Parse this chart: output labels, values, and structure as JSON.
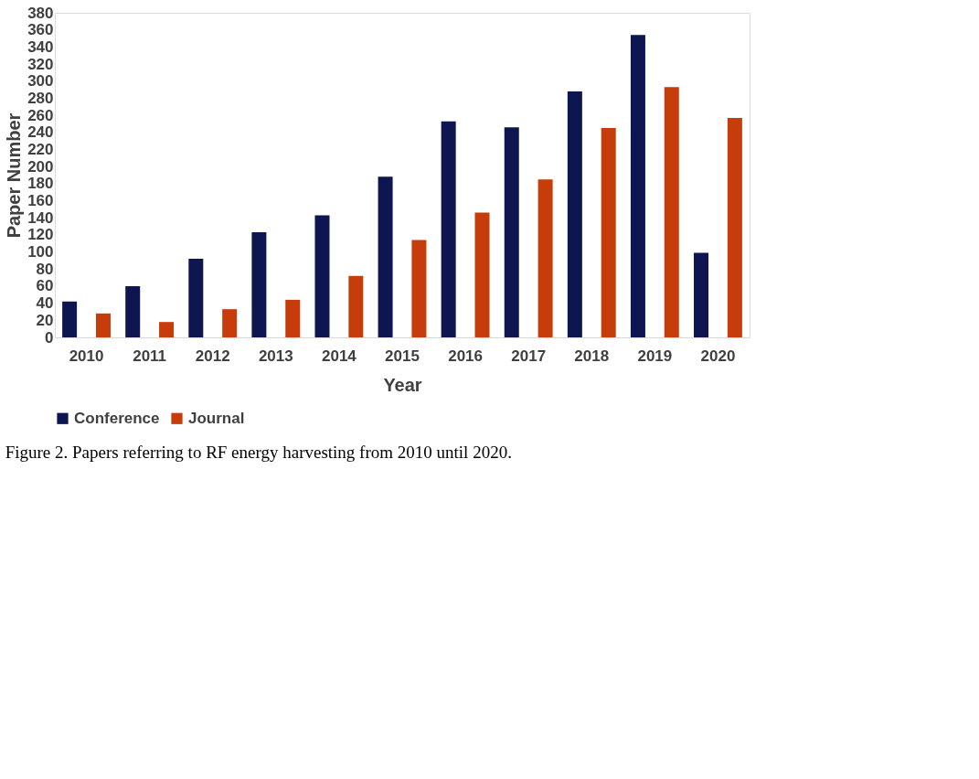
{
  "chart_data": {
    "type": "bar",
    "xlabel": "Year",
    "ylabel": "Paper Number",
    "categories": [
      "2010",
      "2011",
      "2012",
      "2013",
      "2014",
      "2015",
      "2016",
      "2017",
      "2018",
      "2019",
      "2020"
    ],
    "series": [
      {
        "name": "Conference",
        "color": "#0d1650",
        "values": [
          42,
          60,
          92,
          123,
          143,
          188,
          253,
          246,
          288,
          354,
          99
        ]
      },
      {
        "name": "Journal",
        "color": "#c63c0a",
        "values": [
          28,
          18,
          33,
          44,
          72,
          114,
          146,
          185,
          245,
          293,
          257
        ]
      }
    ],
    "ylim": [
      0,
      380
    ],
    "yticks": [
      0,
      20,
      40,
      60,
      80,
      100,
      120,
      140,
      160,
      180,
      200,
      220,
      240,
      260,
      280,
      300,
      320,
      340,
      360,
      380
    ],
    "grid": false,
    "legend": "bottom",
    "annotations": [
      "Figure 2. Papers referring to RF energy harvesting from 2010 until 2020."
    ]
  }
}
